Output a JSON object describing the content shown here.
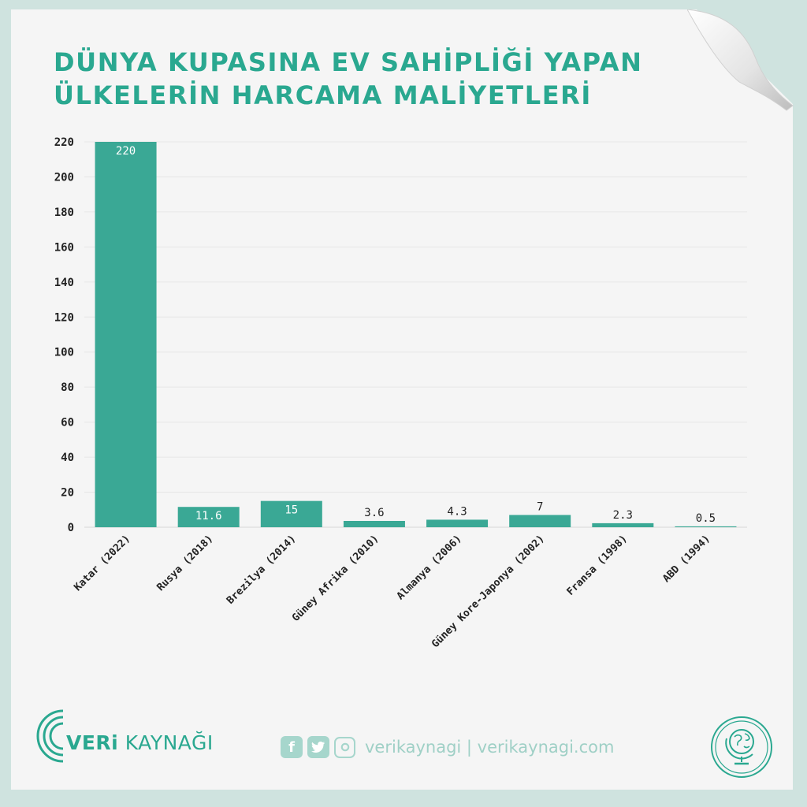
{
  "title_lines": [
    "DÜNYA KUPASINA EV SAHİPLİĞİ YAPAN",
    "ÜLKELERİN HARCAMA MALİYETLERİ"
  ],
  "colors": {
    "accent": "#2aa890",
    "bar": "#3aa895",
    "background": "#cfe3df",
    "paper": "#f5f5f5"
  },
  "chart_data": {
    "type": "bar",
    "categories": [
      "Katar (2022)",
      "Rusya (2018)",
      "Brezilya (2014)",
      "Güney Afrika (2010)",
      "Almanya (2006)",
      "Güney Kore-Japonya (2002)",
      "Fransa (1998)",
      "ABD (1994)"
    ],
    "values": [
      220,
      11.6,
      15,
      3.6,
      4.3,
      7,
      2.3,
      0.5
    ],
    "value_labels": [
      "220",
      "11.6",
      "15",
      "3.6",
      "4.3",
      "7",
      "2.3",
      "0.5"
    ],
    "ylim": [
      0,
      220
    ],
    "yticks": [
      0,
      20,
      40,
      60,
      80,
      100,
      120,
      140,
      160,
      180,
      200,
      220
    ],
    "grid": true,
    "legend": "none"
  },
  "footer": {
    "brand_prefix": "VERi",
    "brand_suffix": "KAYNAĞI",
    "social_handle": "verikaynagi | verikaynagi.com",
    "icons": [
      "facebook-icon",
      "twitter-icon",
      "instagram-icon"
    ]
  }
}
